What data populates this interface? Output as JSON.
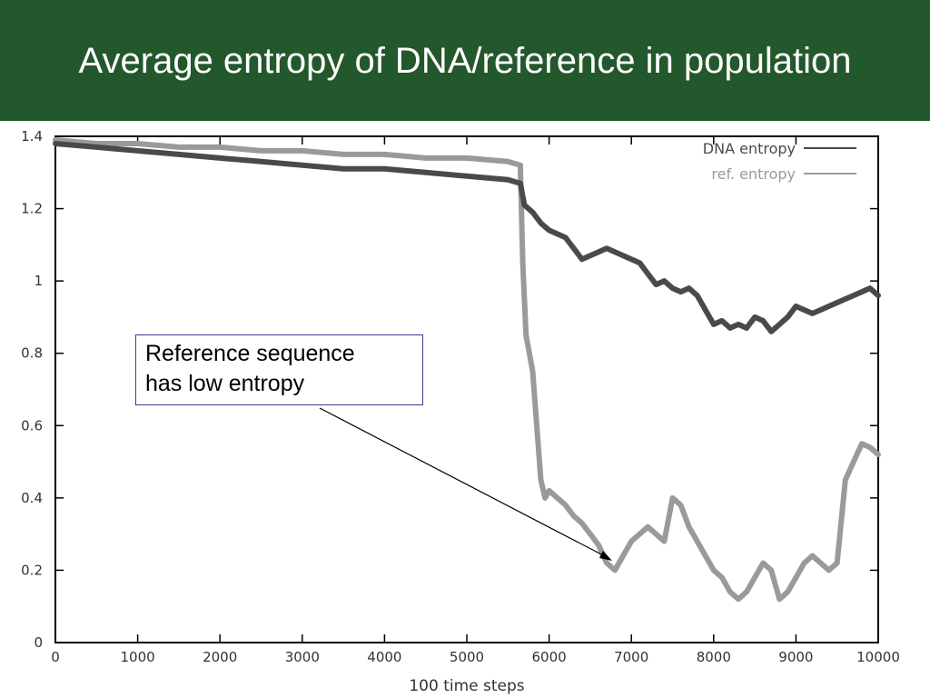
{
  "slide": {
    "title": "Average entropy of  DNA/reference in population"
  },
  "annotation": {
    "lines": [
      "Reference sequence",
      "has low entropy"
    ]
  },
  "colors": {
    "title_bg": "#23572c",
    "dna": "#4a4a4a",
    "ref": "#9a9a9a"
  },
  "chart_data": {
    "type": "line",
    "title": "",
    "xlabel": "100 time steps",
    "ylabel": "",
    "xlim": [
      0,
      10000
    ],
    "ylim": [
      0,
      1.4
    ],
    "x_ticks": [
      0,
      1000,
      2000,
      3000,
      4000,
      5000,
      6000,
      7000,
      8000,
      9000,
      10000
    ],
    "x_tick_labels": [
      "0",
      "1000",
      "2000",
      "3000",
      "4000",
      "5000",
      "6000",
      "7000",
      "8000",
      "9000",
      "10000"
    ],
    "y_ticks": [
      0,
      0.2,
      0.4,
      0.6,
      0.8,
      1,
      1.2,
      1.4
    ],
    "y_tick_labels": [
      "0",
      "0.2",
      "0.4",
      "0.6",
      "0.8",
      "1",
      "1.2",
      "1.4"
    ],
    "legend_position": "top-right",
    "series": [
      {
        "name": "DNA entropy",
        "x": [
          0,
          500,
          1000,
          1500,
          2000,
          2500,
          3000,
          3500,
          4000,
          4500,
          5000,
          5500,
          5650,
          5700,
          5800,
          5900,
          6000,
          6100,
          6200,
          6300,
          6400,
          6500,
          6600,
          6700,
          6800,
          6900,
          7000,
          7100,
          7200,
          7300,
          7400,
          7500,
          7600,
          7700,
          7800,
          7900,
          8000,
          8100,
          8200,
          8300,
          8400,
          8500,
          8600,
          8700,
          8800,
          8900,
          9000,
          9100,
          9200,
          9300,
          9400,
          9500,
          9600,
          9700,
          9800,
          9900,
          10000
        ],
        "values": [
          1.38,
          1.37,
          1.36,
          1.35,
          1.34,
          1.33,
          1.32,
          1.31,
          1.31,
          1.3,
          1.29,
          1.28,
          1.27,
          1.21,
          1.19,
          1.16,
          1.14,
          1.13,
          1.12,
          1.09,
          1.06,
          1.07,
          1.08,
          1.09,
          1.08,
          1.07,
          1.06,
          1.05,
          1.02,
          0.99,
          1.0,
          0.98,
          0.97,
          0.98,
          0.96,
          0.92,
          0.88,
          0.89,
          0.87,
          0.88,
          0.87,
          0.9,
          0.89,
          0.86,
          0.88,
          0.9,
          0.93,
          0.92,
          0.91,
          0.92,
          0.93,
          0.94,
          0.95,
          0.96,
          0.97,
          0.98,
          0.96
        ]
      },
      {
        "name": "ref. entropy",
        "x": [
          0,
          500,
          1000,
          1500,
          2000,
          2500,
          3000,
          3500,
          4000,
          4500,
          5000,
          5500,
          5650,
          5680,
          5720,
          5800,
          5850,
          5900,
          5950,
          6000,
          6100,
          6200,
          6300,
          6400,
          6500,
          6600,
          6700,
          6800,
          6900,
          7000,
          7100,
          7200,
          7300,
          7400,
          7500,
          7600,
          7700,
          7800,
          7900,
          8000,
          8100,
          8200,
          8300,
          8400,
          8500,
          8600,
          8700,
          8800,
          8900,
          9000,
          9100,
          9200,
          9300,
          9400,
          9500,
          9600,
          9700,
          9800,
          9900,
          10000
        ],
        "values": [
          1.39,
          1.38,
          1.38,
          1.37,
          1.37,
          1.36,
          1.36,
          1.35,
          1.35,
          1.34,
          1.34,
          1.33,
          1.32,
          1.05,
          0.85,
          0.75,
          0.6,
          0.45,
          0.4,
          0.42,
          0.4,
          0.38,
          0.35,
          0.33,
          0.3,
          0.27,
          0.22,
          0.2,
          0.24,
          0.28,
          0.3,
          0.32,
          0.3,
          0.28,
          0.4,
          0.38,
          0.32,
          0.28,
          0.24,
          0.2,
          0.18,
          0.14,
          0.12,
          0.14,
          0.18,
          0.22,
          0.2,
          0.12,
          0.14,
          0.18,
          0.22,
          0.24,
          0.22,
          0.2,
          0.22,
          0.45,
          0.5,
          0.55,
          0.54,
          0.52
        ]
      }
    ]
  }
}
